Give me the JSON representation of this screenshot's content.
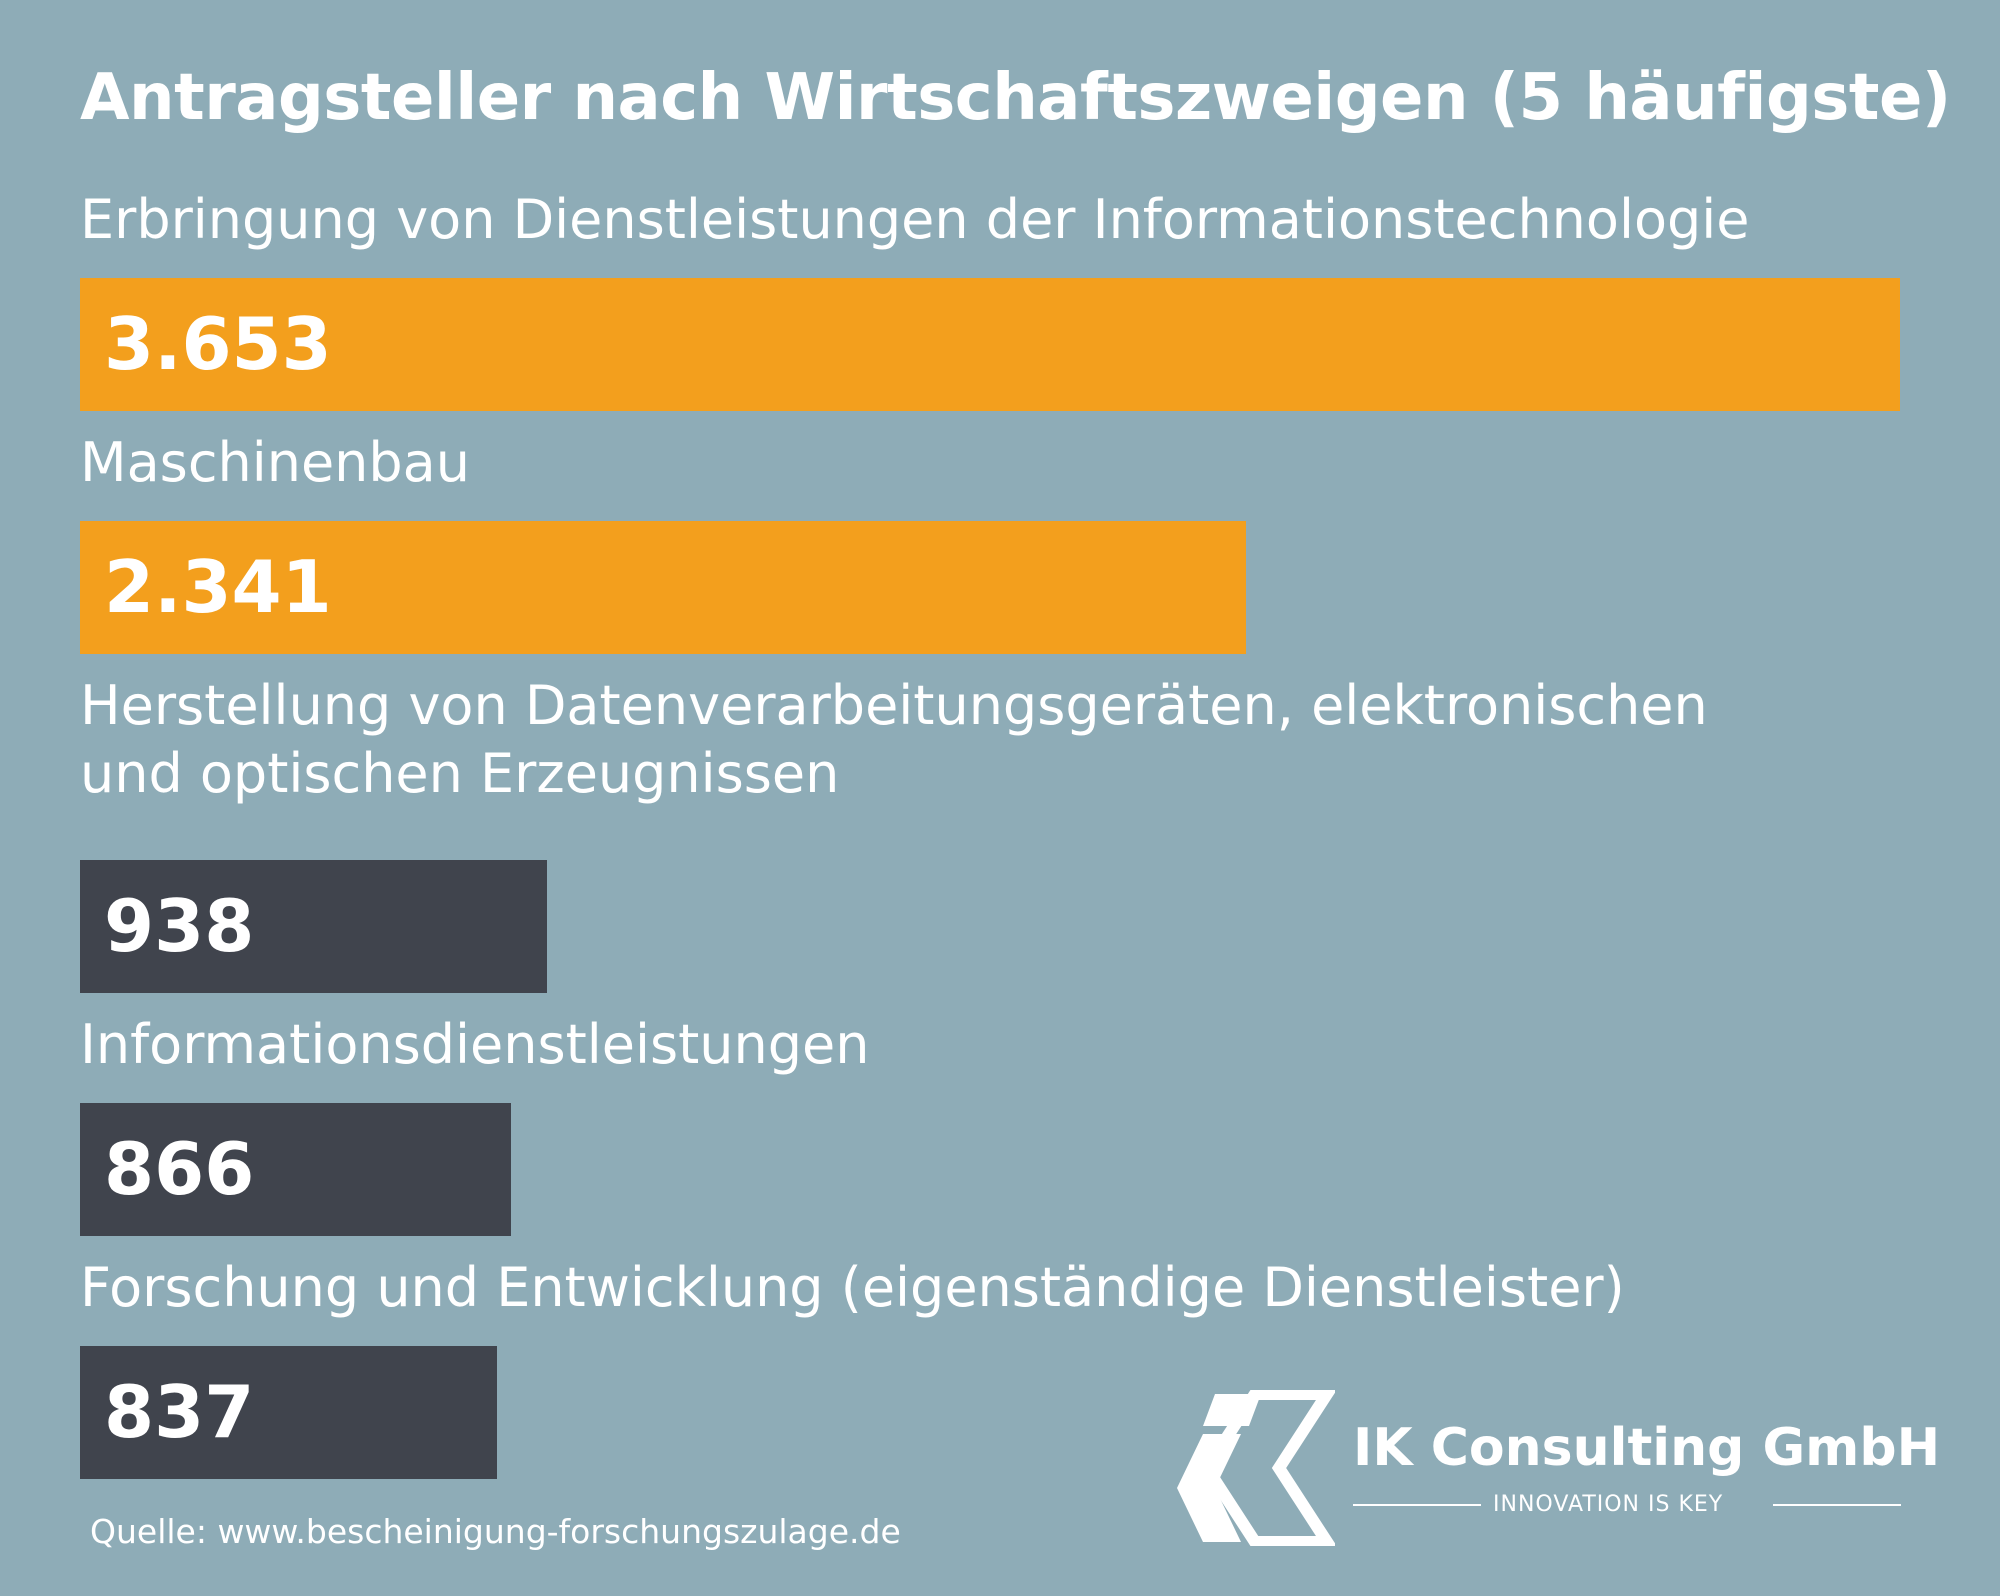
{
  "colors": {
    "background": "#8eacb7",
    "highlight": "#f39f1d",
    "dark": "#40444d",
    "text": "#ffffff"
  },
  "logo": {
    "icon": "ik-logo-mark",
    "name": "IK Consulting GmbH",
    "tagline": "INNOVATION IS KEY"
  },
  "source": "Quelle: www.bescheinigung-forschungszulage.de",
  "chart_data": {
    "type": "bar",
    "orientation": "horizontal",
    "title": "Antragsteller nach Wirtschaftszweigen (5 häufigste)",
    "categories": [
      "Erbringung von Dienstleistungen der Informationstechnologie",
      "Maschinenbau",
      "Herstellung von Datenverarbeitungsgeräten, elektronischen und optischen Erzeugnissen",
      "Informationsdienstleistungen",
      "Forschung und Entwicklung (eigenständige Dienstleister)"
    ],
    "category_lines": [
      [
        "Erbringung von Dienstleistungen der Informationstechnologie"
      ],
      [
        "Maschinenbau"
      ],
      [
        "Herstellung von Datenverarbeitungsgeräten, elektronischen",
        "und optischen Erzeugnissen"
      ],
      [
        "Informationsdienstleistungen"
      ],
      [
        "Forschung und Entwicklung (eigenständige Dienstleister)"
      ]
    ],
    "values": [
      3653,
      2341,
      938,
      866,
      837
    ],
    "value_labels": [
      "3.653",
      "2.341",
      "938",
      "866",
      "837"
    ],
    "bar_colors": [
      "#f39f1d",
      "#f39f1d",
      "#40444d",
      "#40444d",
      "#40444d"
    ],
    "xlim": [
      0,
      3653
    ],
    "grid": false,
    "legend": "none"
  }
}
